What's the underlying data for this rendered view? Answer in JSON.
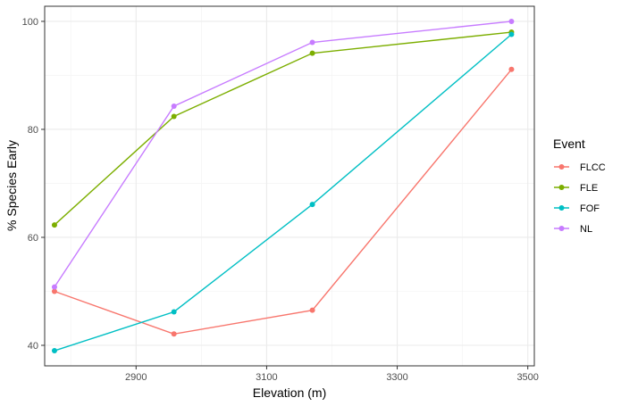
{
  "chart_data": {
    "type": "line",
    "xlabel": "Elevation (m)",
    "ylabel": "% Species Early",
    "xlim": [
      2760,
      3510
    ],
    "ylim": [
      36.2,
      102.8
    ],
    "x_ticks": [
      2900,
      3100,
      3300,
      3500
    ],
    "y_ticks": [
      40,
      60,
      80,
      100
    ],
    "grid": true,
    "legend": {
      "title": "Event",
      "position": "right"
    },
    "x": [
      2775,
      2958,
      3170,
      3475
    ],
    "series": [
      {
        "name": "FLCC",
        "color": "#F8766D",
        "values": [
          50.0,
          42.1,
          46.5,
          91.1
        ]
      },
      {
        "name": "FLE",
        "color": "#7CAE00",
        "values": [
          62.3,
          82.4,
          94.1,
          98.0
        ]
      },
      {
        "name": "FOF",
        "color": "#00BFC4",
        "values": [
          39.0,
          46.2,
          66.1,
          97.6
        ]
      },
      {
        "name": "NL",
        "color": "#C77CFF",
        "values": [
          50.8,
          84.3,
          96.1,
          100.0
        ]
      }
    ]
  }
}
